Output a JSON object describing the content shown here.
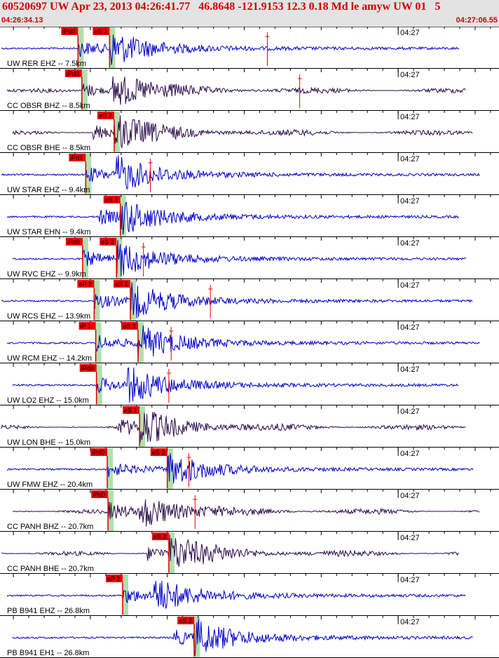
{
  "header": {
    "title": "60520697 UW Apr 23, 2013 04:26:41.77   46.8648 -121.9153 12.3 0.18 Md le amyw UW 01   5",
    "start_time": "04:26:34.13",
    "end_time": "04:27:06.55"
  },
  "colors": {
    "header_text": "#d00000",
    "trace_blue": "#0000cc",
    "trace_purple": "#2a0a4a",
    "pick_red": "#ee0000",
    "theoretical_green": "#b0e0b0",
    "grid": "#000000"
  },
  "chart_data": {
    "type": "line",
    "title": "60520697 UW Apr 23, 2013 04:26:41.77   46.8648 -121.9153 12.3 0.18 Md le amyw UW 01   5",
    "x_range": [
      "04:26:34.13",
      "04:27:06.55"
    ],
    "x_range_seconds": [
      34.13,
      66.55
    ],
    "tick_interval_seconds": 1,
    "minute_tick_label": "04:27",
    "minute_tick_seconds": 60,
    "origin_seconds": 41.77,
    "traces": [
      {
        "label": "UW RER EHZ -- 7.5km",
        "distance_km": 7.5,
        "color": "blue",
        "p_label": "iPd0",
        "p_time": 39.2,
        "s_label": "eS 3",
        "s_time": 41.25,
        "amp_time": 51.5
      },
      {
        "label": "CC OBSR BHZ -- 8.5km",
        "distance_km": 8.5,
        "color": "purple",
        "p_label": "iPd0",
        "p_time": 39.45,
        "s_label": "",
        "s_time": null,
        "amp_time": 53.6
      },
      {
        "label": "CC OBSR BHE -- 8.5km",
        "distance_km": 8.5,
        "color": "purple",
        "p_label": "",
        "p_time": null,
        "s_label": "eS 2",
        "s_time": 41.55,
        "amp_time": null
      },
      {
        "label": "UW STAR EHZ -- 9.4km",
        "distance_km": 9.4,
        "color": "blue",
        "p_label": "iPd1",
        "p_time": 39.7,
        "s_label": "",
        "s_time": null,
        "amp_time": 43.9
      },
      {
        "label": "UW STAR EHN -- 9.4km",
        "distance_km": 9.4,
        "color": "blue",
        "p_label": "",
        "p_time": null,
        "s_label": "eS 3",
        "s_time": 41.95,
        "amp_time": null
      },
      {
        "label": "UW RVC EHZ -- 9.9km",
        "distance_km": 9.9,
        "color": "blue",
        "p_label": "iPd0",
        "p_time": 39.5,
        "s_label": "eS 2",
        "s_time": 41.7,
        "amp_time": 43.45
      },
      {
        "label": "UW RCS EHZ -- 13.9km",
        "distance_km": 13.9,
        "color": "blue",
        "p_label": "eP 2",
        "p_time": 40.25,
        "s_label": "eS 1",
        "s_time": 42.6,
        "amp_time": 47.8
      },
      {
        "label": "UW RCM EHZ -- 14.2km",
        "distance_km": 14.2,
        "color": "blue",
        "p_label": "iP 1",
        "p_time": 40.35,
        "s_label": "eS 3",
        "s_time": 43.1,
        "amp_time": 45.25
      },
      {
        "label": "UW LO2 EHZ -- 15.0km",
        "distance_km": 15.0,
        "color": "blue",
        "p_label": "iPd0",
        "p_time": 40.4,
        "s_label": "",
        "s_time": null,
        "amp_time": 45.1
      },
      {
        "label": "UW LON BHE -- 15.0km",
        "distance_km": 15.0,
        "color": "purple",
        "p_label": "",
        "p_time": null,
        "s_label": "eS 1",
        "s_time": 43.2,
        "amp_time": null
      },
      {
        "label": "UW FMW EHZ -- 20.4km",
        "distance_km": 20.4,
        "color": "blue",
        "p_label": "iPd0",
        "p_time": 41.1,
        "s_label": "eS 2",
        "s_time": 45.0,
        "amp_time": 46.4
      },
      {
        "label": "CC PANH BHZ -- 20.7km",
        "distance_km": 20.7,
        "color": "purple",
        "p_label": "iPd0",
        "p_time": 41.15,
        "s_label": "",
        "s_time": null,
        "amp_time": 46.8
      },
      {
        "label": "CC PANH BHE -- 20.7km",
        "distance_km": 20.7,
        "color": "purple",
        "p_label": "",
        "p_time": null,
        "s_label": "eS 2",
        "s_time": 45.1,
        "amp_time": null
      },
      {
        "label": "PB B941 EHZ -- 26.8km",
        "distance_km": 26.8,
        "color": "blue",
        "p_label": "eP 2",
        "p_time": 42.1,
        "s_label": "",
        "s_time": null,
        "amp_time": null
      },
      {
        "label": "PB B941 EH1 -- 26.8km",
        "distance_km": 26.8,
        "color": "blue",
        "p_label": "",
        "p_time": null,
        "s_label": "eS 2",
        "s_time": 46.75,
        "amp_time": null
      }
    ]
  }
}
